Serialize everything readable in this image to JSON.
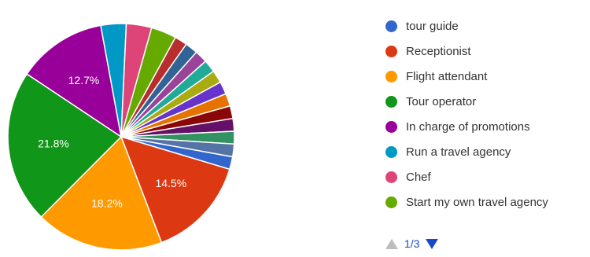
{
  "chart_data": {
    "type": "pie",
    "slices": [
      {
        "label": "tour guide",
        "value": 1.8,
        "color": "#3366cc"
      },
      {
        "label": "Receptionist",
        "value": 14.5,
        "color": "#dc3912",
        "data_label": "14.5%"
      },
      {
        "label": "Flight attendant",
        "value": 18.2,
        "color": "#ff9900",
        "data_label": "18.2%"
      },
      {
        "label": "Tour operator",
        "value": 21.8,
        "color": "#109618",
        "data_label": "21.8%"
      },
      {
        "label": "In charge of promotions",
        "value": 12.7,
        "color": "#990099",
        "data_label": "12.7%"
      },
      {
        "label": "Run a travel agency",
        "value": 3.6,
        "color": "#0099c6"
      },
      {
        "label": "Chef",
        "value": 3.6,
        "color": "#dd4477"
      },
      {
        "label": "Start my own travel agency",
        "value": 3.6,
        "color": "#66aa00"
      },
      {
        "label": "",
        "value": 1.8,
        "color": "#b82e2e"
      },
      {
        "label": "",
        "value": 1.8,
        "color": "#316395"
      },
      {
        "label": "",
        "value": 1.8,
        "color": "#994499"
      },
      {
        "label": "",
        "value": 1.8,
        "color": "#22aa99"
      },
      {
        "label": "",
        "value": 1.8,
        "color": "#aaaa11"
      },
      {
        "label": "",
        "value": 1.8,
        "color": "#6633cc"
      },
      {
        "label": "",
        "value": 1.8,
        "color": "#e67300"
      },
      {
        "label": "",
        "value": 1.8,
        "color": "#8b0707"
      },
      {
        "label": "",
        "value": 1.8,
        "color": "#651067"
      },
      {
        "label": "",
        "value": 1.8,
        "color": "#329262"
      },
      {
        "label": "",
        "value": 1.8,
        "color": "#5574a6"
      }
    ],
    "legend": {
      "placement": "right"
    }
  },
  "legend_items": [
    {
      "label": "tour guide",
      "color": "#3366cc"
    },
    {
      "label": "Receptionist",
      "color": "#dc3912"
    },
    {
      "label": "Flight attendant",
      "color": "#ff9900"
    },
    {
      "label": "Tour operator",
      "color": "#109618"
    },
    {
      "label": "In charge of promotions",
      "color": "#990099"
    },
    {
      "label": "Run a travel agency",
      "color": "#0099c6"
    },
    {
      "label": "Chef",
      "color": "#dd4477"
    },
    {
      "label": "Start my own travel agency",
      "color": "#66aa00"
    }
  ],
  "pager": {
    "text": "1/3",
    "prev_icon": "triangle-up-icon",
    "next_icon": "triangle-down-icon"
  }
}
